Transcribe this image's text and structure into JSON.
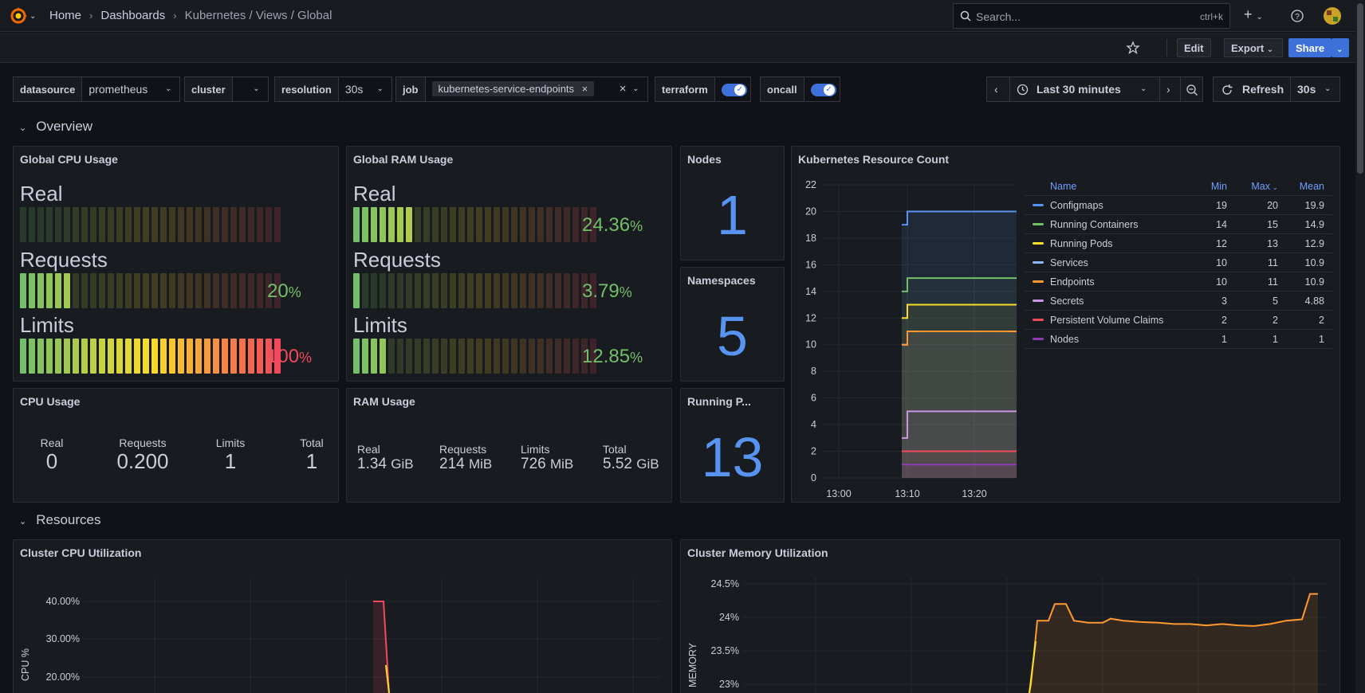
{
  "breadcrumb": {
    "home": "Home",
    "dashboards": "Dashboards",
    "current": "Kubernetes / Views / Global"
  },
  "search": {
    "placeholder": "Search...",
    "shortcut": "ctrl+k"
  },
  "toolbar": {
    "edit": "Edit",
    "export": "Export",
    "share": "Share"
  },
  "variables": {
    "datasource": {
      "label": "datasource",
      "value": "prometheus"
    },
    "cluster": {
      "label": "cluster",
      "value": ""
    },
    "resolution": {
      "label": "resolution",
      "value": "30s"
    },
    "job": {
      "label": "job",
      "value": "kubernetes-service-endpoints"
    },
    "terraform": {
      "label": "terraform",
      "on": true
    },
    "oncall": {
      "label": "oncall",
      "on": true
    }
  },
  "timepicker": {
    "range": "Last 30 minutes",
    "refresh": "Refresh",
    "interval": "30s"
  },
  "sections": {
    "overview": "Overview",
    "resources": "Resources"
  },
  "panels": {
    "global_cpu": {
      "title": "Global CPU Usage",
      "real": {
        "label": "Real",
        "percent": 0,
        "value": ""
      },
      "requests": {
        "label": "Requests",
        "percent": 20,
        "value": "20",
        "unit": "%"
      },
      "limits": {
        "label": "Limits",
        "percent": 100,
        "value": "100",
        "unit": "%"
      }
    },
    "global_ram": {
      "title": "Global RAM Usage",
      "real": {
        "label": "Real",
        "percent": 24.36,
        "value": "24.36",
        "unit": "%"
      },
      "requests": {
        "label": "Requests",
        "percent": 3.79,
        "value": "3.79",
        "unit": "%"
      },
      "limits": {
        "label": "Limits",
        "percent": 12.85,
        "value": "12.85",
        "unit": "%"
      }
    },
    "nodes": {
      "title": "Nodes",
      "value": "1"
    },
    "namespaces": {
      "title": "Namespaces",
      "value": "5"
    },
    "running_pods": {
      "title": "Running P...",
      "value": "13"
    },
    "cpu_usage": {
      "title": "CPU Usage",
      "cols": [
        {
          "label": "Real",
          "value": "0"
        },
        {
          "label": "Requests",
          "value": "0.200"
        },
        {
          "label": "Limits",
          "value": "1"
        },
        {
          "label": "Total",
          "value": "1"
        }
      ]
    },
    "ram_usage": {
      "title": "RAM Usage",
      "cols": [
        {
          "label": "Real",
          "value": "1.34",
          "unit": "GiB"
        },
        {
          "label": "Requests",
          "value": "214",
          "unit": "MiB"
        },
        {
          "label": "Limits",
          "value": "726",
          "unit": "MiB"
        },
        {
          "label": "Total",
          "value": "5.52",
          "unit": "GiB"
        }
      ]
    },
    "resource_count": {
      "title": "Kubernetes Resource Count",
      "legend_headers": {
        "name": "Name",
        "min": "Min",
        "max": "Max",
        "mean": "Mean"
      }
    },
    "cluster_cpu": {
      "title": "Cluster CPU Utilization"
    },
    "cluster_memory": {
      "title": "Cluster Memory Utilization"
    }
  },
  "chart_data": [
    {
      "type": "line",
      "title": "Kubernetes Resource Count",
      "ylim": [
        0,
        22
      ],
      "yticks": [
        0,
        2,
        4,
        6,
        8,
        10,
        12,
        14,
        16,
        18,
        20,
        22
      ],
      "xticks": [
        "13:00",
        "13:10",
        "13:20"
      ],
      "series": [
        {
          "name": "Configmaps",
          "color": "#5794f2",
          "start": 19,
          "end": 20,
          "min": "19",
          "max": "20",
          "mean": "19.9"
        },
        {
          "name": "Running Containers",
          "color": "#73bf69",
          "start": 14,
          "end": 15,
          "min": "14",
          "max": "15",
          "mean": "14.9"
        },
        {
          "name": "Running Pods",
          "color": "#fade2a",
          "start": 12,
          "end": 13,
          "min": "12",
          "max": "13",
          "mean": "12.9"
        },
        {
          "name": "Services",
          "color": "#8ab8ff",
          "start": 10,
          "end": 11,
          "min": "10",
          "max": "11",
          "mean": "10.9"
        },
        {
          "name": "Endpoints",
          "color": "#ff9830",
          "start": 10,
          "end": 11,
          "min": "10",
          "max": "11",
          "mean": "10.9"
        },
        {
          "name": "Secrets",
          "color": "#ca95e5",
          "start": 3,
          "end": 5,
          "min": "3",
          "max": "5",
          "mean": "4.88"
        },
        {
          "name": "Persistent Volume Claims",
          "color": "#f2495c",
          "start": 2,
          "end": 2,
          "min": "2",
          "max": "2",
          "mean": "2"
        },
        {
          "name": "Nodes",
          "color": "#8f3bb8",
          "start": 1,
          "end": 1,
          "min": "1",
          "max": "1",
          "mean": "1"
        }
      ]
    },
    {
      "type": "line",
      "title": "Cluster CPU Utilization",
      "ylabel": "CPU %",
      "yticks": [
        "40.00%",
        "30.00%",
        "20.00%"
      ],
      "values_visible": [
        41,
        41,
        15
      ]
    },
    {
      "type": "area",
      "title": "Cluster Memory Utilization",
      "ylabel": "MEMORY",
      "yticks": [
        "24.5%",
        "24%",
        "23.5%",
        "23%"
      ],
      "values": [
        23.0,
        23.95,
        23.95,
        24.2,
        24.2,
        23.95,
        23.92,
        23.92,
        23.98,
        23.95,
        23.93,
        23.92,
        23.9,
        23.9,
        23.88,
        23.9,
        23.88,
        23.87,
        23.9,
        23.95,
        23.97,
        24.35,
        24.35
      ]
    }
  ],
  "colors": {
    "accent": "#3d71d9",
    "stat_blue": "#5794f2",
    "green": "#73bf69",
    "red": "#f2495c"
  }
}
